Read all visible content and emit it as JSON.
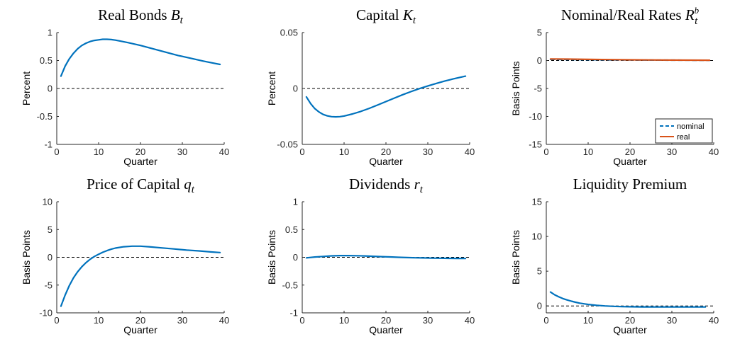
{
  "colors": {
    "blue": "#0072BD",
    "orange": "#D95319",
    "axis": "#262626"
  },
  "chart_data": [
    {
      "type": "line",
      "title": "Real Bonds",
      "title_var": "B",
      "title_sub": "t",
      "title_sup": "",
      "ylabel": "Percent",
      "xlabel": "Quarter",
      "xlim": [
        0,
        40
      ],
      "ylim": [
        -1,
        1
      ],
      "xticks": [
        0,
        10,
        20,
        30,
        40
      ],
      "yticks": [
        -1,
        -0.5,
        0,
        0.5,
        1
      ],
      "zero_line": true,
      "series": [
        {
          "color": "#0072BD",
          "dash": false,
          "x": [
            1,
            2,
            3,
            4,
            5,
            6,
            7,
            8,
            9,
            10,
            11,
            12,
            13,
            14,
            15,
            17,
            20,
            23,
            26,
            29,
            32,
            35,
            37,
            39
          ],
          "y": [
            0.22,
            0.4,
            0.53,
            0.63,
            0.71,
            0.77,
            0.81,
            0.84,
            0.86,
            0.87,
            0.88,
            0.88,
            0.875,
            0.865,
            0.85,
            0.82,
            0.77,
            0.71,
            0.65,
            0.59,
            0.54,
            0.49,
            0.46,
            0.43
          ]
        }
      ]
    },
    {
      "type": "line",
      "title": "Capital",
      "title_var": "K",
      "title_sub": "t",
      "title_sup": "",
      "ylabel": "Percent",
      "xlabel": "Quarter",
      "xlim": [
        0,
        40
      ],
      "ylim": [
        -0.05,
        0.05
      ],
      "xticks": [
        0,
        10,
        20,
        30,
        40
      ],
      "yticks": [
        -0.05,
        0,
        0.05
      ],
      "zero_line": true,
      "series": [
        {
          "color": "#0072BD",
          "dash": false,
          "x": [
            1,
            2,
            3,
            4,
            5,
            6,
            7,
            8,
            9,
            10,
            12,
            14,
            16,
            18,
            20,
            22,
            24,
            26,
            28,
            30,
            32,
            34,
            36,
            39
          ],
          "y": [
            -0.0075,
            -0.0135,
            -0.018,
            -0.021,
            -0.0232,
            -0.0245,
            -0.0252,
            -0.0254,
            -0.0252,
            -0.0246,
            -0.0228,
            -0.0205,
            -0.0178,
            -0.0148,
            -0.0117,
            -0.0086,
            -0.0056,
            -0.0028,
            -0.0001,
            0.0023,
            0.0045,
            0.0066,
            0.0085,
            0.011
          ]
        }
      ]
    },
    {
      "type": "line",
      "title": "Nominal/Real Rates",
      "title_var": "R",
      "title_sub": "t",
      "title_sup": "b",
      "ylabel": "Basis Points",
      "xlabel": "Quarter",
      "xlim": [
        0,
        40
      ],
      "ylim": [
        -15,
        5
      ],
      "xticks": [
        0,
        10,
        20,
        30,
        40
      ],
      "yticks": [
        -15,
        -10,
        -5,
        0,
        5
      ],
      "zero_line": true,
      "legend": {
        "position": "bottom-right",
        "entries": [
          "nominal",
          "real"
        ]
      },
      "series": [
        {
          "name": "nominal",
          "color": "#0072BD",
          "dash": true,
          "x": [
            1,
            5,
            10,
            15,
            20,
            25,
            30,
            35,
            39
          ],
          "y": [
            0.2,
            0.18,
            0.15,
            0.12,
            0.1,
            0.08,
            0.06,
            0.05,
            0.04
          ]
        },
        {
          "name": "real",
          "color": "#D95319",
          "dash": false,
          "x": [
            1,
            5,
            10,
            15,
            20,
            25,
            30,
            35,
            39
          ],
          "y": [
            0.28,
            0.25,
            0.2,
            0.16,
            0.13,
            0.1,
            0.08,
            0.06,
            0.05
          ]
        }
      ]
    },
    {
      "type": "line",
      "title": "Price of Capital",
      "title_var": "q",
      "title_sub": "t",
      "title_sup": "",
      "ylabel": "Basis Points",
      "xlabel": "Quarter",
      "xlim": [
        0,
        40
      ],
      "ylim": [
        -10,
        10
      ],
      "xticks": [
        0,
        10,
        20,
        30,
        40
      ],
      "yticks": [
        -10,
        -5,
        0,
        5,
        10
      ],
      "zero_line": true,
      "series": [
        {
          "color": "#0072BD",
          "dash": false,
          "x": [
            1,
            2,
            3,
            4,
            5,
            6,
            7,
            8,
            9,
            10,
            11,
            12,
            13,
            14,
            16,
            18,
            20,
            22,
            25,
            28,
            31,
            34,
            37,
            39
          ],
          "y": [
            -8.8,
            -6.8,
            -5.1,
            -3.7,
            -2.6,
            -1.7,
            -0.95,
            -0.35,
            0.15,
            0.55,
            0.9,
            1.2,
            1.45,
            1.65,
            1.9,
            2.0,
            2.0,
            1.9,
            1.7,
            1.5,
            1.3,
            1.15,
            0.95,
            0.85
          ]
        }
      ]
    },
    {
      "type": "line",
      "title": "Dividends",
      "title_var": "r",
      "title_sub": "t",
      "title_sup": "",
      "ylabel": "Basis Points",
      "xlabel": "Quarter",
      "xlim": [
        0,
        40
      ],
      "ylim": [
        -1,
        1
      ],
      "xticks": [
        0,
        10,
        20,
        30,
        40
      ],
      "yticks": [
        -1,
        -0.5,
        0,
        0.5,
        1
      ],
      "zero_line": true,
      "series": [
        {
          "color": "#0072BD",
          "dash": false,
          "x": [
            1,
            3,
            5,
            7,
            9,
            11,
            13,
            15,
            17,
            19,
            21,
            23,
            25,
            27,
            29,
            31,
            33,
            35,
            37,
            39
          ],
          "y": [
            -0.01,
            0.005,
            0.015,
            0.025,
            0.03,
            0.03,
            0.028,
            0.024,
            0.018,
            0.012,
            0.006,
            0.0,
            -0.005,
            -0.009,
            -0.012,
            -0.015,
            -0.017,
            -0.019,
            -0.021,
            -0.022
          ]
        }
      ]
    },
    {
      "type": "line",
      "title": "Liquidity Premium",
      "title_var": "",
      "title_sub": "",
      "title_sup": "",
      "ylabel": "Basis Points",
      "xlabel": "Quarter",
      "xlim": [
        0,
        40
      ],
      "ylim": [
        -1,
        15
      ],
      "xticks": [
        0,
        10,
        20,
        30,
        40
      ],
      "yticks": [
        0,
        5,
        10,
        15
      ],
      "zero_line": true,
      "series": [
        {
          "color": "#0072BD",
          "dash": false,
          "x": [
            1,
            2,
            3,
            4,
            5,
            6,
            7,
            8,
            9,
            10,
            12,
            14,
            16,
            18,
            20,
            23,
            26,
            30,
            34,
            38
          ],
          "y": [
            2.0,
            1.6,
            1.3,
            1.05,
            0.85,
            0.68,
            0.53,
            0.4,
            0.3,
            0.21,
            0.09,
            0.0,
            -0.06,
            -0.1,
            -0.12,
            -0.14,
            -0.15,
            -0.15,
            -0.15,
            -0.15
          ]
        }
      ]
    }
  ]
}
